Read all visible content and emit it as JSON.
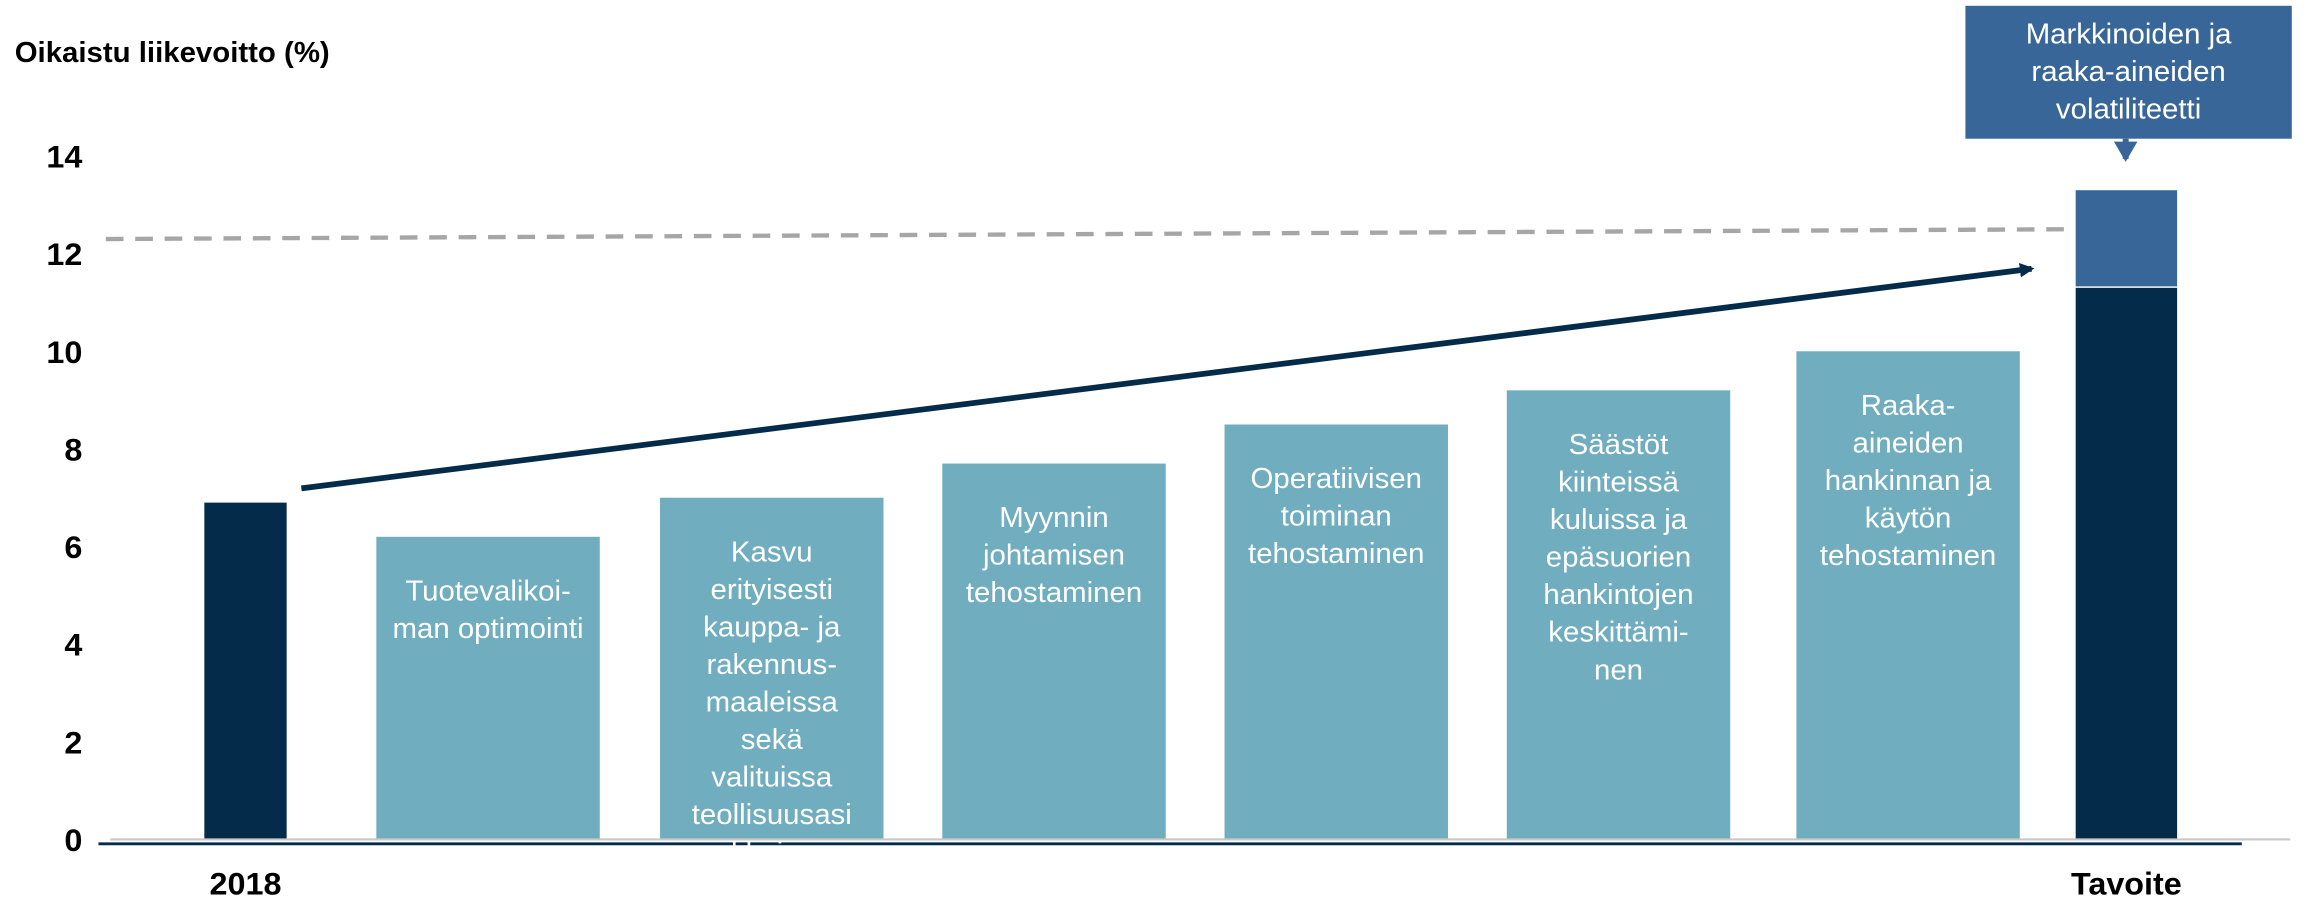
{
  "chart_data": {
    "type": "bar",
    "y_label": "Oikaistu liikevoitto (%)",
    "categories": [
      "2018",
      "Tuotevalikoi-\nman optimointi",
      "Kasvu\nerityisesti\nkauppa- ja\nrakennus-\nmaaleissa\nsekä\nvalituissa\nteollisuusasi\nakkaissa",
      "Myynnin\njohtamisen\ntehostaminen",
      "Operatiivisen\ntoiminan\ntehostaminen",
      "Säästöt\nkiinteissä\nkuluissa ja\nepäsuorien\nhankintojen\nkeskittämi-\nnen",
      "Raaka-\naineiden\nhankinnan ja\nkäytön\ntehostaminen",
      "Tavoite"
    ],
    "series": [
      {
        "colors": [
          "#042c4a",
          "#6fadbf",
          "#6fadbf",
          "#6fadbf",
          "#6fadbf",
          "#6fadbf",
          "#6fadbf",
          "#042c4a"
        ],
        "values": [
          6.9,
          6.2,
          7.0,
          7.7,
          8.5,
          9.2,
          10.0,
          11.3
        ]
      },
      {
        "color": "#386699",
        "values": [
          null,
          null,
          null,
          null,
          null,
          null,
          null,
          2.0
        ]
      }
    ],
    "reference_line": [
      12.3,
      12.5
    ],
    "annotation": "Markkinoiden ja\nraaka-aineiden\nvolatiliteetti",
    "ylim": [
      0,
      14
    ],
    "yticks": [
      0,
      2,
      4,
      6,
      8,
      10,
      12,
      14
    ]
  }
}
